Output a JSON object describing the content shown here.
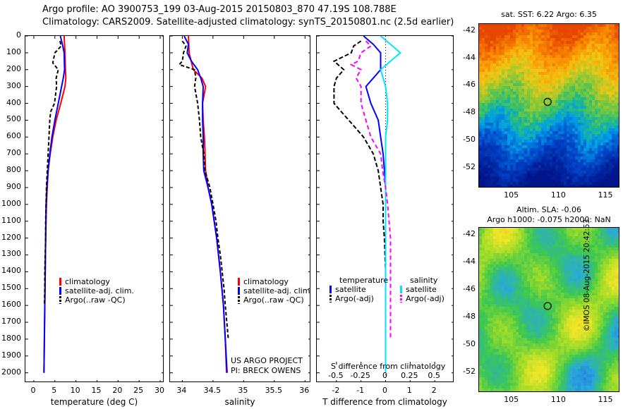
{
  "header": {
    "line1": "Argo profile: AO 3900753_199 03-Aug-2015 20150803_870 47.19S 108.788E",
    "line2": "Climatology: CARS2009. Satellite-adjusted climatology: synTS_20150801.nc (2.5d earlier)"
  },
  "depth_ticks": [
    "0",
    "100",
    "200",
    "300",
    "400",
    "500",
    "600",
    "700",
    "800",
    "900",
    "1000",
    "1100",
    "1200",
    "1300",
    "1400",
    "1500",
    "1600",
    "1700",
    "1800",
    "1900",
    "2000"
  ],
  "colors": {
    "climatology": "#ff0000",
    "satellite": "#0000ff",
    "argo": "#000000",
    "salinity_sat": "#00e5ff",
    "salinity_argo": "#ff00ff"
  },
  "chart_data": [
    {
      "type": "line",
      "xlabel": "temperature (deg C)",
      "xticks": [
        "0",
        "5",
        "10",
        "15",
        "20",
        "25",
        "30"
      ],
      "xlim": [
        -2,
        31
      ],
      "ylim": [
        0,
        2060
      ],
      "legend": [
        "climatology",
        "satellite-adj. clim.",
        "Argo(..raw -QC)"
      ],
      "series": [
        {
          "name": "climatology",
          "depth": [
            0,
            50,
            100,
            200,
            250,
            300,
            400,
            500,
            600,
            700,
            800,
            900,
            1000,
            1200,
            1400,
            1600,
            1800,
            2000
          ],
          "values": [
            7.2,
            7.3,
            7.4,
            7.5,
            7.6,
            7.4,
            6.4,
            5.3,
            4.5,
            3.9,
            3.4,
            3.2,
            3.0,
            2.8,
            2.7,
            2.6,
            2.5,
            2.4
          ]
        },
        {
          "name": "satellite-adj. clim.",
          "depth": [
            0,
            50,
            100,
            200,
            250,
            300,
            400,
            500,
            600,
            700,
            800,
            900,
            1000,
            1200,
            1400,
            1600,
            1800,
            2000
          ],
          "values": [
            6.3,
            6.8,
            7.2,
            7.3,
            7.0,
            6.6,
            5.8,
            5.0,
            4.3,
            3.8,
            3.4,
            3.1,
            2.9,
            2.8,
            2.7,
            2.6,
            2.5,
            2.4
          ]
        },
        {
          "name": "Argo(..raw -QC)",
          "depth": [
            30,
            60,
            100,
            160,
            200,
            250,
            300,
            400,
            450,
            500,
            600,
            700,
            800,
            900,
            1000,
            1100,
            1200,
            1300,
            1400,
            1500,
            1600
          ],
          "values": [
            6.2,
            6.5,
            5.0,
            4.5,
            5.8,
            5.3,
            5.4,
            4.9,
            4.0,
            3.8,
            3.6,
            3.4,
            3.2,
            3.0,
            2.9,
            2.8,
            2.8,
            2.7,
            2.6,
            2.6,
            2.5
          ]
        }
      ]
    },
    {
      "type": "line",
      "xlabel": "salinity",
      "xticks": [
        "34",
        "34.5",
        "35",
        "35.5",
        "36"
      ],
      "xlim": [
        33.8,
        36.1
      ],
      "ylim": [
        0,
        2060
      ],
      "legend": [
        "climatology",
        "satellite-adj. clim.",
        "Argo(..raw -QC)"
      ],
      "series": [
        {
          "name": "climatology",
          "depth": [
            0,
            100,
            200,
            250,
            300,
            400,
            500,
            600,
            700,
            800,
            900,
            1000,
            1200,
            1400,
            1600,
            1800,
            2000
          ],
          "values": [
            34.1,
            34.11,
            34.18,
            34.32,
            34.38,
            34.33,
            34.34,
            34.36,
            34.37,
            34.38,
            34.42,
            34.48,
            34.56,
            34.62,
            34.67,
            34.7,
            34.72
          ]
        },
        {
          "name": "satellite-adj. clim.",
          "depth": [
            0,
            50,
            100,
            150,
            200,
            250,
            300,
            400,
            500,
            600,
            700,
            800,
            900,
            1000,
            1200,
            1400,
            1600,
            1800,
            2000
          ],
          "values": [
            34.03,
            34.1,
            34.08,
            34.15,
            34.25,
            34.3,
            34.34,
            34.33,
            34.33,
            34.34,
            34.34,
            34.35,
            34.42,
            34.48,
            34.56,
            34.62,
            34.67,
            34.7,
            34.73
          ]
        },
        {
          "name": "Argo(..raw -QC)",
          "depth": [
            30,
            60,
            100,
            150,
            170,
            200,
            250,
            300,
            400,
            500,
            600,
            700,
            800,
            900,
            1000,
            1100,
            1200,
            1300,
            1400,
            1500,
            1600,
            1800
          ],
          "values": [
            34.0,
            34.06,
            34.02,
            34.0,
            33.95,
            34.2,
            34.22,
            34.2,
            34.25,
            34.28,
            34.3,
            34.35,
            34.37,
            34.45,
            34.5,
            34.55,
            34.58,
            34.62,
            34.65,
            34.68,
            34.7,
            34.75
          ]
        }
      ]
    },
    {
      "type": "line",
      "xlabel": "T difference from climatology",
      "title": "S difference from climatology",
      "xticks_T": [
        "-2",
        "-1",
        "0",
        "1",
        "2"
      ],
      "xticks_S": [
        "-0.5",
        "-0.25",
        "0",
        "0.25",
        "0.5"
      ],
      "xlim": [
        -2.8,
        2.8
      ],
      "ylim": [
        0,
        2060
      ],
      "legend_left": {
        "heading": "temperature",
        "items": [
          "satellite",
          "Argo(-adj)"
        ]
      },
      "legend_right": {
        "heading": "salinity",
        "items": [
          "satellite",
          "Argo(-adj)"
        ]
      },
      "series": [
        {
          "name": "temperature satellite",
          "depth": [
            0,
            50,
            100,
            200,
            300,
            400,
            500,
            600,
            700,
            800,
            900,
            1000,
            1200,
            1500,
            2000
          ],
          "values": [
            -0.9,
            -0.5,
            -0.2,
            -0.2,
            -0.8,
            -0.6,
            -0.3,
            -0.2,
            -0.1,
            -0.05,
            0,
            0,
            0,
            0,
            0
          ]
        },
        {
          "name": "temperature Argo(-adj)",
          "depth": [
            30,
            60,
            100,
            150,
            200,
            250,
            300,
            400,
            450,
            500,
            600,
            700,
            800,
            900,
            1000,
            1100,
            1200,
            1400,
            1600
          ],
          "values": [
            -1.0,
            -1.3,
            -1.4,
            -2.1,
            -1.7,
            -2.0,
            -2.1,
            -2.1,
            -1.8,
            -1.5,
            -0.9,
            -0.5,
            -0.3,
            -0.2,
            -0.1,
            -0.1,
            -0.05,
            0,
            0
          ]
        },
        {
          "name": "salinity satellite",
          "depth": [
            0,
            50,
            100,
            150,
            200,
            300,
            400,
            500,
            600,
            700,
            800,
            900,
            1000,
            1500,
            2000
          ],
          "values": [
            -0.05,
            0.05,
            0.15,
            0.05,
            -0.05,
            0.0,
            0.02,
            0.02,
            0.0,
            0.0,
            0.0,
            0.0,
            0.0,
            0.0,
            0.0
          ]
        },
        {
          "name": "salinity Argo(-adj)",
          "depth": [
            30,
            60,
            100,
            150,
            170,
            200,
            250,
            300,
            400,
            500,
            600,
            700,
            800,
            900,
            1000,
            1200,
            1400,
            1600,
            1800
          ],
          "values": [
            -0.2,
            -0.15,
            -0.25,
            -0.28,
            -0.35,
            -0.25,
            -0.3,
            -0.25,
            -0.25,
            -0.2,
            -0.15,
            -0.05,
            -0.03,
            0.0,
            0.02,
            0.05,
            0.05,
            0.05,
            0.05
          ]
        }
      ]
    },
    {
      "type": "heatmap",
      "title": "sat. SST: 6.22 Argo: 6.35",
      "xticks": [
        "105",
        "110",
        "115"
      ],
      "yticks": [
        "-42",
        "-44",
        "-46",
        "-48",
        "-50",
        "-52"
      ],
      "xlim": [
        101.5,
        116.5
      ],
      "ylim": [
        -53.5,
        -41.5
      ],
      "marker": {
        "lon": 108.788,
        "lat": -47.19
      }
    },
    {
      "type": "heatmap",
      "title_line1": "Altim. SLA: -0.06",
      "title_line2": "Argo h1000: -0.075 h2000: NaN",
      "xticks": [
        "105",
        "110",
        "115"
      ],
      "yticks": [
        "-42",
        "-44",
        "-46",
        "-48",
        "-50",
        "-52"
      ],
      "xlim": [
        101.5,
        116.5
      ],
      "ylim": [
        -53.5,
        -41.5
      ],
      "marker": {
        "lon": 108.788,
        "lat": -47.19
      }
    }
  ],
  "annotations": {
    "project_line1": "US ARGO PROJECT",
    "project_line2": "PI: BRECK OWENS",
    "stamp": "©IMOS 08-Aug-2015 20:42:53"
  }
}
